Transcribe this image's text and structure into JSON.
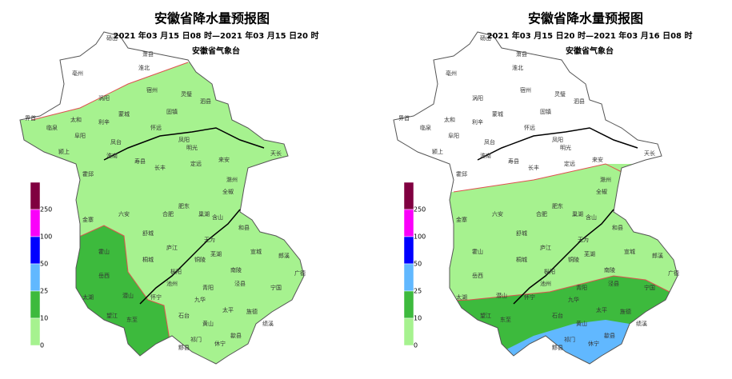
{
  "maps": [
    {
      "title": "安徽省降水量预报图",
      "time_range": "2021 年03 月15 日08 时—2021 年03 月15 日20 时",
      "agency": "安徽省气象台"
    },
    {
      "title": "安徽省降水量预报图",
      "time_range": "2021 年03 月15 日20 时—2021 年03 月16 日08 时",
      "agency": "安徽省气象台"
    }
  ],
  "legend_labels": [
    "250",
    "100",
    "50",
    "25",
    "10",
    "0"
  ],
  "cities": [
    "砀山",
    "萧县",
    "淮北",
    "亳州",
    "涡阳",
    "宿州",
    "灵璧",
    "泗县",
    "蒙城",
    "固镇",
    "界首",
    "太和",
    "临泉",
    "利辛",
    "阜阳",
    "凤台",
    "颍上",
    "淮南",
    "怀远",
    "凤阳",
    "明光",
    "天长",
    "寿县",
    "长丰",
    "定远",
    "来安",
    "霍邱",
    "滁州",
    "全椒",
    "六安",
    "合肥",
    "肥东",
    "金寨",
    "舒城",
    "巢湖",
    "含山",
    "和县",
    "霍山",
    "庐江",
    "无为",
    "芜湖",
    "宣城",
    "郎溪",
    "岳西",
    "桐城",
    "枞阳",
    "铜陵",
    "南陵",
    "广德",
    "太湖",
    "潜山",
    "怀宁",
    "池州",
    "青阳",
    "泾县",
    "宁国",
    "望江",
    "东至",
    "石台",
    "九华",
    "太平",
    "旌德",
    "黟县",
    "黄山",
    "绩溪",
    "祁门",
    "休宁",
    "歙县"
  ]
}
